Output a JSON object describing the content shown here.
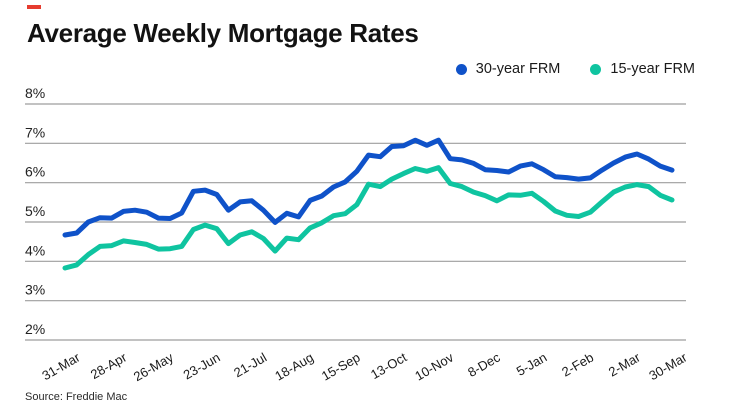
{
  "title": "Average Weekly Mortgage Rates",
  "source": "Source: Freddie Mac",
  "accent_color": "#e63c2f",
  "chart_data": {
    "type": "line",
    "title": "Average Weekly Mortgage Rates",
    "xlabel": "",
    "ylabel": "",
    "ylim": [
      2,
      8
    ],
    "y_ticks": [
      "8%",
      "7%",
      "6%",
      "5%",
      "4%",
      "3%",
      "2%"
    ],
    "grid": "horizontal",
    "gridline_color": "#9e9e9e",
    "legend_position": "top-right",
    "x_tick_labels": [
      "31-Mar",
      "28-Apr",
      "26-May",
      "23-Jun",
      "21-Jul",
      "18-Aug",
      "15-Sep",
      "13-Oct",
      "10-Nov",
      "8-Dec",
      "5-Jan",
      "2-Feb",
      "2-Mar",
      "30-Mar"
    ],
    "x_tick_indices": [
      0,
      4,
      8,
      12,
      16,
      20,
      24,
      28,
      32,
      36,
      40,
      44,
      48,
      52
    ],
    "series": [
      {
        "name": "30-year FRM",
        "color": "#0f52c9",
        "values": [
          4.67,
          4.72,
          5.0,
          5.11,
          5.1,
          5.27,
          5.3,
          5.25,
          5.1,
          5.09,
          5.23,
          5.78,
          5.81,
          5.7,
          5.3,
          5.51,
          5.54,
          5.3,
          4.99,
          5.22,
          5.13,
          5.55,
          5.66,
          5.89,
          6.02,
          6.29,
          6.7,
          6.66,
          6.92,
          6.94,
          7.08,
          6.95,
          7.08,
          6.61,
          6.58,
          6.49,
          6.33,
          6.31,
          6.27,
          6.42,
          6.48,
          6.33,
          6.15,
          6.13,
          6.09,
          6.12,
          6.32,
          6.5,
          6.65,
          6.73,
          6.6,
          6.42,
          6.32
        ]
      },
      {
        "name": "15-year FRM",
        "color": "#0fc4a0",
        "values": [
          3.83,
          3.91,
          4.17,
          4.38,
          4.4,
          4.52,
          4.48,
          4.43,
          4.31,
          4.32,
          4.38,
          4.81,
          4.92,
          4.83,
          4.45,
          4.67,
          4.75,
          4.58,
          4.26,
          4.59,
          4.55,
          4.85,
          4.98,
          5.16,
          5.21,
          5.44,
          5.96,
          5.9,
          6.09,
          6.23,
          6.36,
          6.29,
          6.38,
          5.98,
          5.9,
          5.76,
          5.67,
          5.54,
          5.69,
          5.68,
          5.73,
          5.52,
          5.28,
          5.17,
          5.14,
          5.25,
          5.51,
          5.76,
          5.89,
          5.95,
          5.9,
          5.68,
          5.56
        ]
      }
    ]
  }
}
